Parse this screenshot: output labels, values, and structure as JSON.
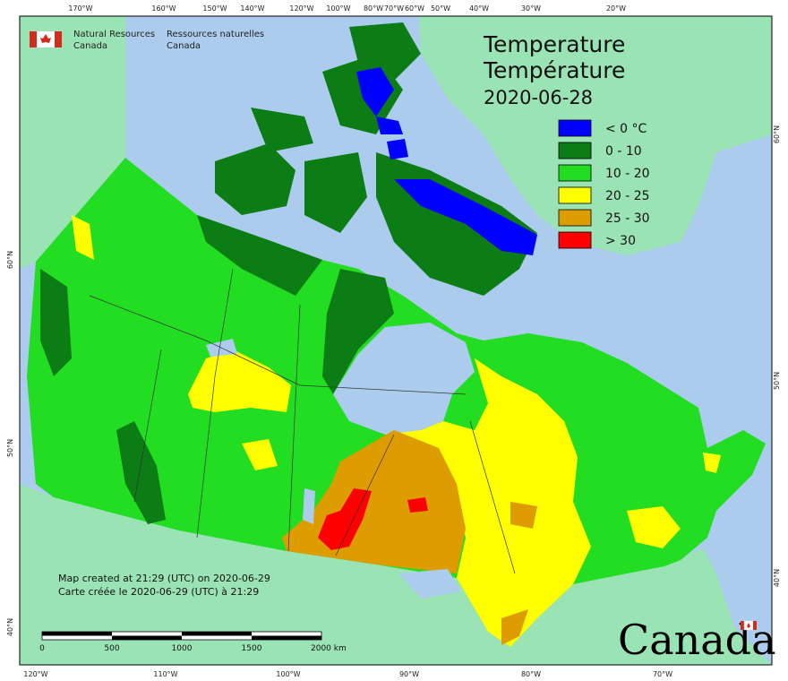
{
  "agency": {
    "en": [
      "Natural Resources",
      "Canada"
    ],
    "fr": [
      "Ressources naturelles",
      "Canada"
    ]
  },
  "title": [
    "Temperature",
    "Température",
    "2020-06-28"
  ],
  "legend": [
    {
      "label": "< 0 °C",
      "color": "#0000ff"
    },
    {
      "label": "0 - 10",
      "color": "#0b7d14"
    },
    {
      "label": "10 - 20",
      "color": "#22dd22"
    },
    {
      "label": "20 - 25",
      "color": "#ffff00"
    },
    {
      "label": "25 - 30",
      "color": "#dd9c00"
    },
    {
      "label": "> 30",
      "color": "#ff0000"
    }
  ],
  "graticule": {
    "top": [
      "170°W",
      "160°W",
      "150°W",
      "140°W",
      "120°W",
      "100°W",
      "80°W",
      "70°W",
      "60°W",
      "50°W",
      "40°W",
      "30°W",
      "20°W"
    ],
    "bottom": [
      "120°W",
      "110°W",
      "100°W",
      "90°W",
      "80°W",
      "70°W"
    ],
    "left": [
      "60°N",
      "50°N",
      "40°N"
    ],
    "right": [
      "60°N",
      "50°N",
      "40°N"
    ]
  },
  "credits": [
    "Map created at 21:29 (UTC) on 2020-06-29",
    "Carte créée le 2020-06-29 (UTC) à 21:29"
  ],
  "scale_bar": [
    "0",
    "500",
    "1000",
    "1500",
    "2000 km"
  ],
  "wordmark": "Canada"
}
